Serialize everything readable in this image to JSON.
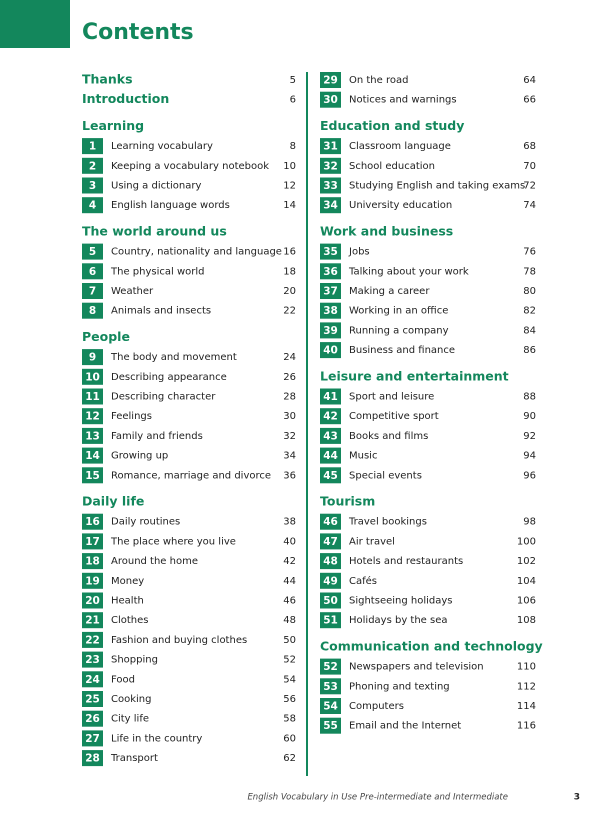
{
  "header": {
    "title": "Contents"
  },
  "columns": [
    {
      "items": [
        {
          "title": "Thanks",
          "page": 5
        },
        {
          "title": "Introduction",
          "page": 6
        },
        {
          "heading": "Learning"
        },
        {
          "number": 1,
          "title": "Learning vocabulary",
          "page": 8
        },
        {
          "number": 2,
          "title": "Keeping a vocabulary notebook",
          "page": 10
        },
        {
          "number": 3,
          "title": "Using a dictionary",
          "page": 12
        },
        {
          "number": 4,
          "title": "English language words",
          "page": 14
        },
        {
          "heading": "The world around us"
        },
        {
          "number": 5,
          "title": "Country, nationality and language",
          "page": 16
        },
        {
          "number": 6,
          "title": "The physical world",
          "page": 18
        },
        {
          "number": 7,
          "title": "Weather",
          "page": 20
        },
        {
          "number": 8,
          "title": "Animals and insects",
          "page": 22
        },
        {
          "heading": "People"
        },
        {
          "number": 9,
          "title": "The body and movement",
          "page": 24
        },
        {
          "number": 10,
          "title": "Describing appearance",
          "page": 26
        },
        {
          "number": 11,
          "title": "Describing character",
          "page": 28
        },
        {
          "number": 12,
          "title": "Feelings",
          "page": 30
        },
        {
          "number": 13,
          "title": "Family and friends",
          "page": 32
        },
        {
          "number": 14,
          "title": "Growing up",
          "page": 34
        },
        {
          "number": 15,
          "title": "Romance, marriage and divorce",
          "page": 36
        },
        {
          "heading": "Daily life"
        },
        {
          "number": 16,
          "title": "Daily routines",
          "page": 38
        },
        {
          "number": 17,
          "title": "The place where you live",
          "page": 40
        },
        {
          "number": 18,
          "title": "Around the home",
          "page": 42
        },
        {
          "number": 19,
          "title": "Money",
          "page": 44
        },
        {
          "number": 20,
          "title": "Health",
          "page": 46
        },
        {
          "number": 21,
          "title": "Clothes",
          "page": 48
        },
        {
          "number": 22,
          "title": "Fashion and buying clothes",
          "page": 50
        },
        {
          "number": 23,
          "title": "Shopping",
          "page": 52
        },
        {
          "number": 24,
          "title": "Food",
          "page": 54
        },
        {
          "number": 25,
          "title": "Cooking",
          "page": 56
        },
        {
          "number": 26,
          "title": "City life",
          "page": 58
        },
        {
          "number": 27,
          "title": "Life in the country",
          "page": 60
        },
        {
          "number": 28,
          "title": "Transport",
          "page": 62
        }
      ]
    },
    {
      "items": [
        {
          "number": 29,
          "title": "On the road",
          "page": 64
        },
        {
          "number": 30,
          "title": "Notices and warnings",
          "page": 66
        },
        {
          "heading": "Education and study"
        },
        {
          "number": 31,
          "title": "Classroom language",
          "page": 68
        },
        {
          "number": 32,
          "title": "School education",
          "page": 70
        },
        {
          "number": 33,
          "title": "Studying English and taking exams",
          "page": 72
        },
        {
          "number": 34,
          "title": "University education",
          "page": 74
        },
        {
          "heading": "Work and business"
        },
        {
          "number": 35,
          "title": "Jobs",
          "page": 76
        },
        {
          "number": 36,
          "title": "Talking about your work",
          "page": 78
        },
        {
          "number": 37,
          "title": "Making a career",
          "page": 80
        },
        {
          "number": 38,
          "title": "Working in an office",
          "page": 82
        },
        {
          "number": 39,
          "title": "Running a company",
          "page": 84
        },
        {
          "number": 40,
          "title": "Business and finance",
          "page": 86
        },
        {
          "heading": "Leisure and entertainment"
        },
        {
          "number": 41,
          "title": "Sport and leisure",
          "page": 88
        },
        {
          "number": 42,
          "title": "Competitive sport",
          "page": 90
        },
        {
          "number": 43,
          "title": "Books and films",
          "page": 92
        },
        {
          "number": 44,
          "title": "Music",
          "page": 94
        },
        {
          "number": 45,
          "title": "Special events",
          "page": 96
        },
        {
          "heading": "Tourism"
        },
        {
          "number": 46,
          "title": "Travel bookings",
          "page": 98
        },
        {
          "number": 47,
          "title": "Air travel",
          "page": 100
        },
        {
          "number": 48,
          "title": "Hotels and restaurants",
          "page": 102
        },
        {
          "number": 49,
          "title": "Cafés",
          "page": 104
        },
        {
          "number": 50,
          "title": "Sightseeing holidays",
          "page": 106
        },
        {
          "number": 51,
          "title": "Holidays by the sea",
          "page": 108
        },
        {
          "heading": "Communication and technology"
        },
        {
          "number": 52,
          "title": "Newspapers and television",
          "page": 110
        },
        {
          "number": 53,
          "title": "Phoning and texting",
          "page": 112
        },
        {
          "number": 54,
          "title": "Computers",
          "page": 114
        },
        {
          "number": 55,
          "title": "Email and the Internet",
          "page": 116
        }
      ]
    }
  ],
  "footer": {
    "text": "English Vocabulary in Use Pre-intermediate and Intermediate",
    "page": 3
  }
}
